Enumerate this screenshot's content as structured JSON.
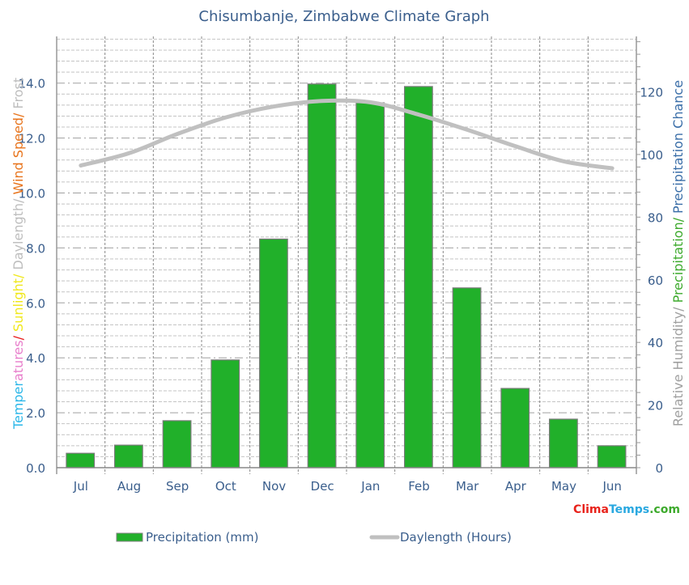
{
  "chart_data": {
    "type": "bar",
    "title": "Chisumbanje, Zimbabwe Climate Graph",
    "categories": [
      "Jul",
      "Aug",
      "Sep",
      "Oct",
      "Nov",
      "Dec",
      "Jan",
      "Feb",
      "Mar",
      "Apr",
      "May",
      "Jun"
    ],
    "series": [
      {
        "name": "Precipitation (mm)",
        "type": "bar",
        "axis": "right",
        "color": "#21b02a",
        "values": [
          4.6,
          7.2,
          15.0,
          34.4,
          73.0,
          122.5,
          116.5,
          121.7,
          57.4,
          25.3,
          15.5,
          7.0
        ]
      },
      {
        "name": "Daylength (Hours)",
        "type": "line",
        "axis": "left",
        "color": "#c0c0c0",
        "values": [
          11.0,
          11.45,
          12.15,
          12.75,
          13.15,
          13.35,
          13.3,
          12.85,
          12.3,
          11.7,
          11.15,
          10.9
        ]
      }
    ],
    "left_axis": {
      "label_parts": [
        {
          "text": "Temper",
          "color": "#29b6e8"
        },
        {
          "text": "atures",
          "color": "#e87ecb"
        },
        {
          "text": "/ ",
          "color": "#e81c1c"
        },
        {
          "text": "Sunlight/ ",
          "color": "#f0e81c"
        },
        {
          "text": "Daylength/ ",
          "color": "#bdbdbd"
        },
        {
          "text": "Wind Speed/ ",
          "color": "#e8741c"
        },
        {
          "text": "Frost",
          "color": "#bdbdbd"
        }
      ],
      "ylim": [
        0,
        15.7
      ],
      "ticks": [
        0,
        2,
        4,
        6,
        8,
        10,
        12,
        14
      ],
      "tick_labels": [
        "0.0",
        "2.0",
        "4.0",
        "6.0",
        "8.0",
        "10.0",
        "12.0",
        "14.0"
      ]
    },
    "right_axis": {
      "label_parts": [
        {
          "text": "Relative Humidity/ ",
          "color": "#a0a0a0"
        },
        {
          "text": "Precipitation/ ",
          "color": "#3daa2c"
        },
        {
          "text": "Precipitation Chance",
          "color": "#3a6ea8"
        }
      ],
      "ylim": [
        0,
        137.7
      ],
      "ticks": [
        0,
        20,
        40,
        60,
        80,
        100,
        120
      ],
      "tick_labels": [
        "0",
        "20",
        "40",
        "60",
        "80",
        "100",
        "120"
      ]
    },
    "grid": true,
    "legend_position": "bottom"
  },
  "legend": {
    "items": [
      {
        "label": "Precipitation (mm)",
        "swatch": "bar",
        "color": "#21b02a"
      },
      {
        "label": "Daylength (Hours)",
        "swatch": "line",
        "color": "#c0c0c0"
      }
    ]
  },
  "logo": {
    "parts": [
      {
        "text": "Clima",
        "color": "#e8231c"
      },
      {
        "text": "Temps",
        "color": "#29a8e0"
      },
      {
        "text": ".com",
        "color": "#3daa2c"
      }
    ]
  }
}
